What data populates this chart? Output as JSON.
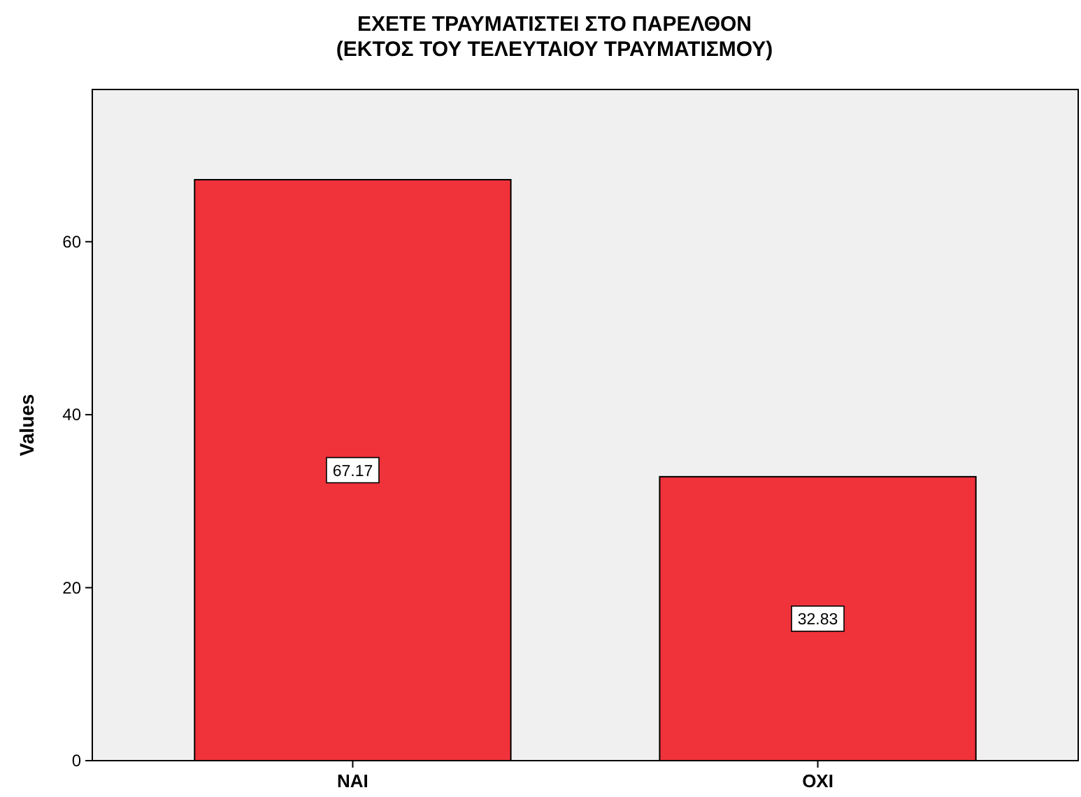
{
  "chart_data": {
    "type": "bar",
    "title": "ΕΧΕΤΕ ΤΡΑΥΜΑΤΙΣΤΕΙ ΣΤΟ ΠΑΡΕΛΘΟΝ\n(ΕΚΤΟΣ ΤΟΥ ΤΕΛΕΥΤΑΙΟΥ ΤΡΑΥΜΑΤΙΣΜΟΥ)",
    "ylabel": "Values",
    "categories": [
      "ΝΑΙ",
      "ΟΧΙ"
    ],
    "values": [
      67.17,
      32.83
    ],
    "color": "#f0323a",
    "ylim": [
      0,
      77.6
    ],
    "yticks": [
      0,
      20,
      40,
      60
    ],
    "data_labels": true,
    "grid": false
  }
}
